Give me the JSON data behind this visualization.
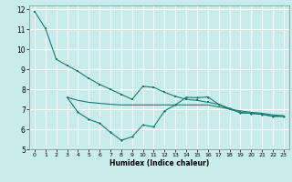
{
  "xlabel": "Humidex (Indice chaleur)",
  "bg_color": "#c8ecec",
  "grid_color": "#ffffff",
  "line_color": "#1a7a6e",
  "xlim": [
    -0.5,
    23.5
  ],
  "ylim": [
    5,
    12.2
  ],
  "xticks": [
    0,
    1,
    2,
    3,
    4,
    5,
    6,
    7,
    8,
    9,
    10,
    11,
    12,
    13,
    14,
    15,
    16,
    17,
    18,
    19,
    20,
    21,
    22,
    23
  ],
  "yticks": [
    5,
    6,
    7,
    8,
    9,
    10,
    11,
    12
  ],
  "series1_x": [
    0,
    1,
    2,
    3,
    4,
    5,
    6,
    7,
    8,
    9,
    10,
    11,
    12,
    13,
    14,
    15,
    16,
    17,
    18,
    19,
    20,
    21,
    22,
    23
  ],
  "series1_y": [
    11.9,
    11.05,
    9.5,
    9.2,
    8.9,
    8.55,
    8.25,
    8.0,
    7.75,
    7.5,
    8.15,
    8.1,
    7.85,
    7.65,
    7.5,
    7.45,
    7.35,
    7.25,
    7.0,
    6.85,
    6.8,
    6.75,
    6.65,
    6.65
  ],
  "series2_x": [
    3,
    4,
    5,
    6,
    7,
    8,
    9,
    10,
    11,
    12,
    13,
    14,
    15,
    16,
    17,
    18,
    19,
    20,
    21,
    22,
    23
  ],
  "series2_y": [
    7.6,
    6.85,
    6.5,
    6.3,
    5.85,
    5.45,
    5.62,
    6.22,
    6.12,
    6.92,
    7.22,
    7.6,
    7.58,
    7.62,
    7.25,
    7.05,
    6.82,
    6.8,
    6.75,
    6.65,
    6.65
  ],
  "series3_x": [
    3,
    4,
    5,
    6,
    7,
    8,
    9,
    10,
    11,
    12,
    13,
    14,
    15,
    16,
    17,
    18,
    19,
    20,
    21,
    22,
    23
  ],
  "series3_y": [
    7.6,
    7.45,
    7.35,
    7.3,
    7.25,
    7.22,
    7.22,
    7.22,
    7.22,
    7.22,
    7.22,
    7.22,
    7.22,
    7.22,
    7.12,
    7.02,
    6.92,
    6.85,
    6.8,
    6.72,
    6.68
  ]
}
